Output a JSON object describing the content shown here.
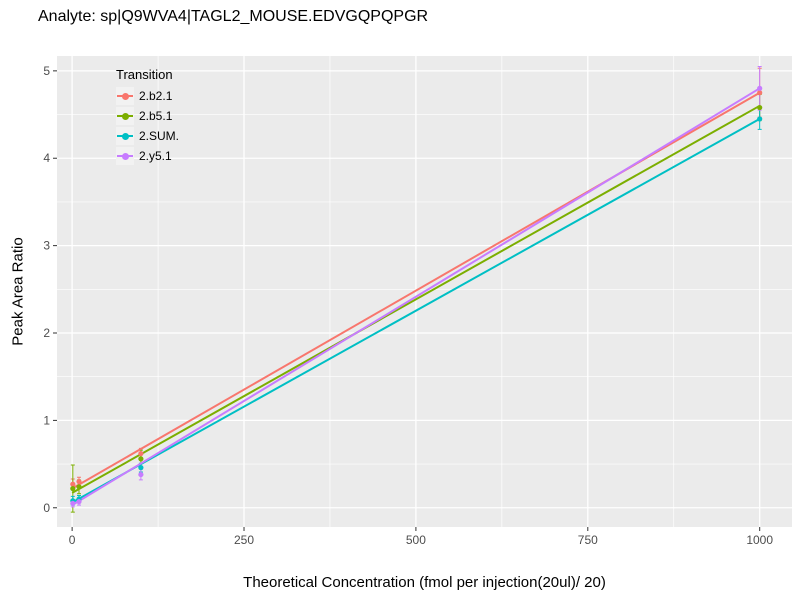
{
  "chart_data": {
    "type": "scatter",
    "title": "Analyte: sp|Q9WVA4|TAGL2_MOUSE.EDVGQPQPGR",
    "xlabel": "Theoretical Concentration (fmol per injection(20ul)/ 20)",
    "ylabel": "Peak Area Ratio",
    "xlim": [
      -22,
      1047
    ],
    "ylim": [
      -0.22,
      5.17
    ],
    "x_ticks": [
      0,
      250,
      500,
      750,
      1000
    ],
    "x_tick_labels": [
      "0",
      "250",
      "500",
      "750",
      "1000"
    ],
    "x_minor_ticks": [
      125,
      375,
      625,
      875
    ],
    "y_ticks": [
      0,
      1,
      2,
      3,
      4,
      5
    ],
    "y_tick_labels": [
      "0",
      "1",
      "2",
      "3",
      "4",
      "5"
    ],
    "y_minor_ticks": [
      0.5,
      1.5,
      2.5,
      3.5,
      4.5
    ],
    "grid": true,
    "panel_bg": "#EBEBEB",
    "grid_color": "#FFFFFF",
    "tick_color": "#333333",
    "tick_label_color": "#4D4D4D",
    "legend": {
      "title": "Transition",
      "position": "inside-top-left"
    },
    "series": [
      {
        "name": "2.b2.1",
        "color": "#F8766D",
        "line": {
          "x0": 0,
          "y0": 0.22,
          "x1": 1000,
          "y1": 4.75
        },
        "points": [
          {
            "x": 1,
            "y": 0.27,
            "err": 0.06
          },
          {
            "x": 10,
            "y": 0.3,
            "err": 0.05
          },
          {
            "x": 100,
            "y": 0.62,
            "err": 0.06
          },
          {
            "x": 1000,
            "y": 4.75,
            "err": 0.28
          }
        ]
      },
      {
        "name": "2.b5.1",
        "color": "#7CAE00",
        "line": {
          "x0": 0,
          "y0": 0.17,
          "x1": 1000,
          "y1": 4.6
        },
        "points": [
          {
            "x": 1,
            "y": 0.22,
            "err": 0.27
          },
          {
            "x": 10,
            "y": 0.24,
            "err": 0.08
          },
          {
            "x": 100,
            "y": 0.56,
            "err": 0.1
          },
          {
            "x": 1000,
            "y": 4.58,
            "err": 0.15
          }
        ]
      },
      {
        "name": "2.SUM.",
        "color": "#00BFC4",
        "line": {
          "x0": 0,
          "y0": 0.06,
          "x1": 1000,
          "y1": 4.45
        },
        "points": [
          {
            "x": 1,
            "y": 0.08,
            "err": 0.05
          },
          {
            "x": 10,
            "y": 0.1,
            "err": 0.04
          },
          {
            "x": 100,
            "y": 0.46,
            "err": 0.05
          },
          {
            "x": 1000,
            "y": 4.45,
            "err": 0.12
          }
        ]
      },
      {
        "name": "2.y5.1",
        "color": "#C77CFF",
        "line": {
          "x0": 0,
          "y0": 0.03,
          "x1": 1000,
          "y1": 4.8
        },
        "points": [
          {
            "x": 1,
            "y": 0.05,
            "err": 0.04
          },
          {
            "x": 10,
            "y": 0.07,
            "err": 0.04
          },
          {
            "x": 100,
            "y": 0.38,
            "err": 0.06
          },
          {
            "x": 1000,
            "y": 4.8,
            "err": 0.25
          }
        ]
      }
    ]
  }
}
